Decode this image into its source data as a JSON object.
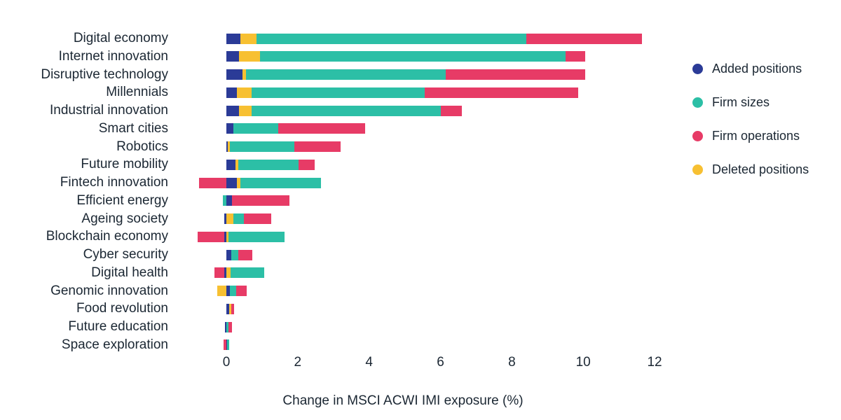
{
  "chart_data": {
    "type": "bar",
    "orientation": "horizontal",
    "stacked": true,
    "title": "",
    "xlabel": "Change in MSCI ACWI IMI exposure (%)",
    "ylabel": "",
    "unit": "%",
    "xticks": [
      0,
      2,
      4,
      6,
      8,
      10,
      12
    ],
    "xlim": [
      -1.0,
      12.5
    ],
    "grid": false,
    "legend_position": "right",
    "legend": [
      {
        "key": "added",
        "label": "Added positions",
        "color": "#2b3b97"
      },
      {
        "key": "firm_sizes",
        "label": "Firm sizes",
        "color": "#2cbfa6"
      },
      {
        "key": "firm_operations",
        "label": "Firm operations",
        "color": "#e73b66"
      },
      {
        "key": "deleted",
        "label": "Deleted positions",
        "color": "#f7c032"
      }
    ],
    "categories": [
      "Digital economy",
      "Internet innovation",
      "Disruptive technology",
      "Millennials",
      "Industrial innovation",
      "Smart cities",
      "Robotics",
      "Future mobility",
      "Fintech innovation",
      "Efficient energy",
      "Ageing society",
      "Blockchain economy",
      "Cyber security",
      "Digital health",
      "Genomic innovation",
      "Food revolution",
      "Future education",
      "Space exploration"
    ],
    "rows": [
      {
        "category": "Digital economy",
        "segments": [
          {
            "series": "added",
            "value": 0.4
          },
          {
            "series": "deleted",
            "value": 0.45
          },
          {
            "series": "firm_sizes",
            "value": 7.55
          },
          {
            "series": "firm_operations",
            "value": 3.25
          }
        ]
      },
      {
        "category": "Internet innovation",
        "segments": [
          {
            "series": "added",
            "value": 0.35
          },
          {
            "series": "deleted",
            "value": 0.6
          },
          {
            "series": "firm_sizes",
            "value": 8.55
          },
          {
            "series": "firm_operations",
            "value": 0.55
          }
        ]
      },
      {
        "category": "Disruptive technology",
        "segments": [
          {
            "series": "added",
            "value": 0.45
          },
          {
            "series": "deleted",
            "value": 0.1
          },
          {
            "series": "firm_sizes",
            "value": 5.6
          },
          {
            "series": "firm_operations",
            "value": 3.9
          }
        ]
      },
      {
        "category": "Millennials",
        "segments": [
          {
            "series": "added",
            "value": 0.3
          },
          {
            "series": "deleted",
            "value": 0.4
          },
          {
            "series": "firm_sizes",
            "value": 4.85
          },
          {
            "series": "firm_operations",
            "value": 4.3
          }
        ]
      },
      {
        "category": "Industrial innovation",
        "segments": [
          {
            "series": "added",
            "value": 0.35
          },
          {
            "series": "deleted",
            "value": 0.35
          },
          {
            "series": "firm_sizes",
            "value": 5.3
          },
          {
            "series": "firm_operations",
            "value": 0.6
          }
        ]
      },
      {
        "category": "Smart cities",
        "segments": [
          {
            "series": "added",
            "value": 0.2
          },
          {
            "series": "firm_sizes",
            "value": 1.26
          },
          {
            "series": "firm_operations",
            "value": 2.42
          }
        ]
      },
      {
        "category": "Robotics",
        "segments": [
          {
            "series": "added",
            "value": 0.03
          },
          {
            "series": "deleted",
            "value": 0.07
          },
          {
            "series": "firm_sizes",
            "value": 1.8
          },
          {
            "series": "firm_operations",
            "value": 1.3
          }
        ]
      },
      {
        "category": "Future mobility",
        "segments": [
          {
            "series": "added",
            "value": 0.25
          },
          {
            "series": "deleted",
            "value": 0.08
          },
          {
            "series": "firm_sizes",
            "value": 1.7
          },
          {
            "series": "firm_operations",
            "value": 0.45
          }
        ]
      },
      {
        "category": "Fintech innovation",
        "segments": [
          {
            "series": "firm_operations",
            "value": -0.76
          },
          {
            "series": "added",
            "value": 0.3
          },
          {
            "series": "deleted",
            "value": 0.1
          },
          {
            "series": "firm_sizes",
            "value": 2.25
          }
        ]
      },
      {
        "category": "Efficient energy",
        "segments": [
          {
            "series": "firm_sizes",
            "value": -0.1
          },
          {
            "series": "added",
            "value": 0.16
          },
          {
            "series": "firm_operations",
            "value": 1.6
          }
        ]
      },
      {
        "category": "Ageing society",
        "segments": [
          {
            "series": "added",
            "value": -0.05
          },
          {
            "series": "deleted",
            "value": 0.2
          },
          {
            "series": "firm_sizes",
            "value": 0.29
          },
          {
            "series": "firm_operations",
            "value": 0.76
          }
        ]
      },
      {
        "category": "Blockchain economy",
        "segments": [
          {
            "series": "added",
            "value": -0.05
          },
          {
            "series": "firm_operations",
            "value": -0.76
          },
          {
            "series": "deleted",
            "value": 0.05
          },
          {
            "series": "firm_sizes",
            "value": 1.58
          }
        ]
      },
      {
        "category": "Cyber security",
        "segments": [
          {
            "series": "added",
            "value": 0.13
          },
          {
            "series": "firm_sizes",
            "value": 0.2
          },
          {
            "series": "firm_operations",
            "value": 0.4
          }
        ]
      },
      {
        "category": "Digital health",
        "segments": [
          {
            "series": "added",
            "value": -0.05
          },
          {
            "series": "firm_operations",
            "value": -0.28
          },
          {
            "series": "deleted",
            "value": 0.12
          },
          {
            "series": "firm_sizes",
            "value": 0.95
          }
        ]
      },
      {
        "category": "Genomic innovation",
        "segments": [
          {
            "series": "deleted",
            "value": -0.25
          },
          {
            "series": "added",
            "value": 0.1
          },
          {
            "series": "firm_sizes",
            "value": 0.18
          },
          {
            "series": "firm_operations",
            "value": 0.28
          }
        ]
      },
      {
        "category": "Food revolution",
        "segments": [
          {
            "series": "added",
            "value": 0.08
          },
          {
            "series": "deleted",
            "value": 0.05
          },
          {
            "series": "firm_operations",
            "value": 0.08
          }
        ]
      },
      {
        "category": "Future education",
        "segments": [
          {
            "series": "added",
            "value": -0.03
          },
          {
            "series": "firm_sizes",
            "value": 0.05
          },
          {
            "series": "firm_operations",
            "value": 0.1
          }
        ]
      },
      {
        "category": "Space exploration",
        "segments": [
          {
            "series": "firm_operations",
            "value": -0.08
          },
          {
            "series": "added",
            "value": 0.02
          },
          {
            "series": "firm_sizes",
            "value": 0.06
          }
        ]
      }
    ]
  }
}
